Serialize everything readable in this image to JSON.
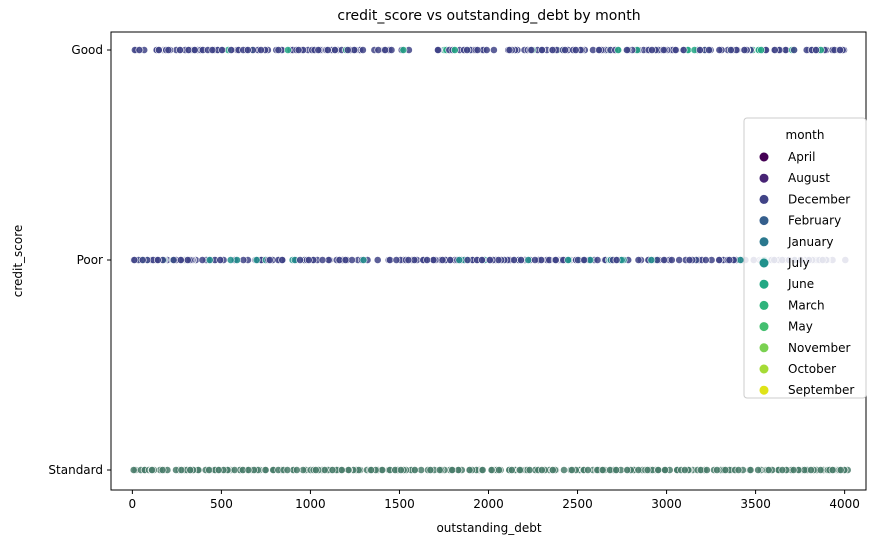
{
  "chart_data": {
    "type": "scatter",
    "title": "credit_score vs outstanding_debt by month",
    "xlabel": "outstanding_debt",
    "ylabel": "credit_score",
    "xlim": [
      -120,
      4120
    ],
    "x_ticks": [
      0,
      500,
      1000,
      1500,
      2000,
      2500,
      3000,
      3500,
      4000
    ],
    "categories": [
      "Good",
      "Poor",
      "Standard"
    ],
    "grid": false,
    "legend": {
      "title": "month",
      "placement": "center-right",
      "entries": [
        {
          "name": "April",
          "color": "#440154"
        },
        {
          "name": "August",
          "color": "#482475"
        },
        {
          "name": "December",
          "color": "#414487"
        },
        {
          "name": "February",
          "color": "#355f8d"
        },
        {
          "name": "January",
          "color": "#2a788e"
        },
        {
          "name": "July",
          "color": "#21918c"
        },
        {
          "name": "June",
          "color": "#22a884"
        },
        {
          "name": "March",
          "color": "#2fb47c"
        },
        {
          "name": "May",
          "color": "#44bf70"
        },
        {
          "name": "November",
          "color": "#7ad151"
        },
        {
          "name": "October",
          "color": "#a5db36"
        },
        {
          "name": "September",
          "color": "#dfe318"
        }
      ]
    },
    "series": [
      {
        "category": "Good",
        "ranges": [
          [
            0,
            1560
          ],
          [
            1700,
            2040
          ],
          [
            2100,
            4010
          ]
        ],
        "dominant_color": "#414487",
        "highlight_color": "#22a884"
      },
      {
        "category": "Poor",
        "ranges": [
          [
            0,
            4020
          ]
        ],
        "dominant_color": "#414487",
        "highlight_color": "#21918c"
      },
      {
        "category": "Standard",
        "ranges": [
          [
            0,
            4020
          ]
        ],
        "dominant_color": "#4a7c6b",
        "highlight_color": "#4a7c6b"
      }
    ]
  }
}
